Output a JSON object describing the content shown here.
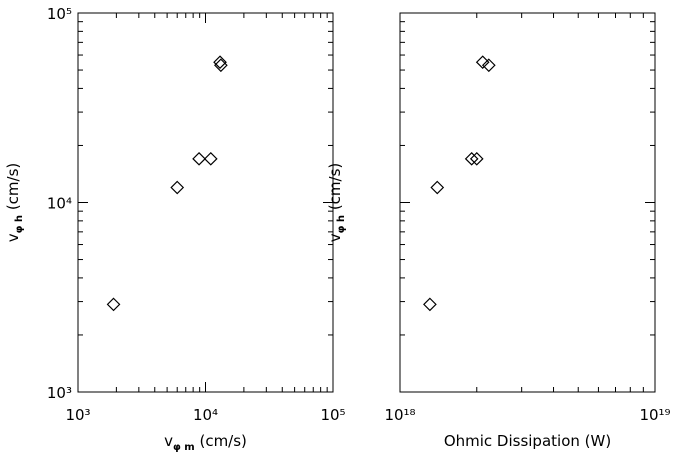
{
  "chart_data": [
    {
      "type": "scatter",
      "log_x": true,
      "log_y": true,
      "color": "#000000",
      "xlabel": [
        "v",
        "φ m",
        " (cm/s)"
      ],
      "ylabel": [
        "v",
        "φ h",
        " (cm/s)"
      ],
      "x": [
        1900,
        6000,
        8900,
        11000,
        13000,
        13200
      ],
      "series": [
        {
          "values": [
            2900,
            12000,
            17000,
            17000,
            55000,
            53000
          ]
        }
      ],
      "xlim": [
        1000,
        100000
      ],
      "ylim": [
        1000,
        100000
      ],
      "xticks": [
        {
          "value": 1000,
          "label": "10³"
        },
        {
          "value": 10000,
          "label": "10⁴"
        },
        {
          "value": 100000,
          "label": "10⁵"
        }
      ],
      "yticks": [
        {
          "value": 1000,
          "label": "10³"
        },
        {
          "value": 10000,
          "label": "10⁴"
        },
        {
          "value": 100000,
          "label": "10⁵"
        }
      ]
    },
    {
      "type": "scatter",
      "log_x": true,
      "log_y": true,
      "color": "#000000",
      "xlabel": [
        "Ohmic Dissipation (W)"
      ],
      "ylabel": [
        "v",
        "φ h",
        " (cm/s)"
      ],
      "x": [
        1.31e+18,
        1.4e+18,
        1.91e+18,
        2e+18,
        2.11e+18,
        2.23e+18
      ],
      "series": [
        {
          "values": [
            2900,
            12000,
            17000,
            17000,
            55000,
            53000
          ]
        }
      ],
      "xlim": [
        1e+18,
        1e+19
      ],
      "ylim": [
        1000,
        100000
      ],
      "xticks": [
        {
          "value": 1e+18,
          "label": "10¹⁸"
        },
        {
          "value": 1e+19,
          "label": "10¹⁹"
        }
      ]
    }
  ]
}
